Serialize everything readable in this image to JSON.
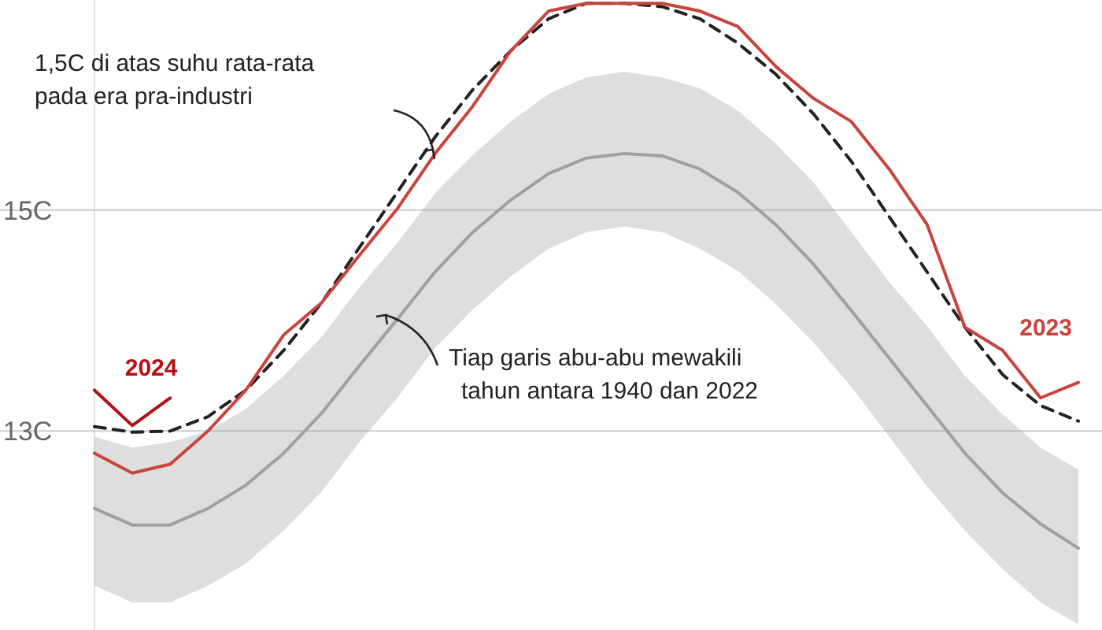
{
  "chart_data": {
    "type": "line",
    "categories": [
      null,
      null,
      null,
      null,
      null,
      null,
      null,
      null,
      null,
      null,
      null,
      null,
      null,
      null,
      null,
      null,
      null,
      null,
      null,
      null,
      null,
      null,
      null,
      null,
      null,
      null,
      null
    ],
    "ylim": [
      11.2,
      16.9
    ],
    "yticks": [
      {
        "value": 13,
        "label": "13C"
      },
      {
        "value": 15,
        "label": "15C"
      }
    ],
    "grid": "y",
    "tick_labels": "y",
    "series": [
      {
        "color": "#a0a0a0",
        "values": [
          12.3,
          12.15,
          12.15,
          12.3,
          12.51,
          12.8,
          13.16,
          13.59,
          14.01,
          14.44,
          14.8,
          15.09,
          15.33,
          15.47,
          15.51,
          15.49,
          15.37,
          15.16,
          14.87,
          14.51,
          14.09,
          13.66,
          13.23,
          12.8,
          12.44,
          12.16,
          11.94
        ],
        "lower": [
          11.6,
          11.45,
          11.45,
          11.6,
          11.8,
          12.1,
          12.45,
          12.9,
          13.3,
          13.75,
          14.1,
          14.4,
          14.65,
          14.8,
          14.85,
          14.8,
          14.65,
          14.45,
          14.15,
          13.8,
          13.4,
          12.95,
          12.5,
          12.1,
          11.75,
          11.45,
          11.25
        ],
        "upper": [
          12.95,
          12.85,
          12.9,
          13.0,
          13.2,
          13.5,
          13.85,
          14.3,
          14.7,
          15.15,
          15.5,
          15.8,
          16.05,
          16.2,
          16.25,
          16.2,
          16.1,
          15.9,
          15.6,
          15.25,
          14.8,
          14.35,
          13.95,
          13.5,
          13.15,
          12.85,
          12.65
        ]
      },
      {
        "color": "#222222",
        "line_style": "dashed",
        "values": [
          13.04,
          12.99,
          13.0,
          13.13,
          13.37,
          13.73,
          14.16,
          14.66,
          15.16,
          15.66,
          16.09,
          16.44,
          16.73,
          16.87,
          16.87,
          16.84,
          16.73,
          16.51,
          16.23,
          15.87,
          15.44,
          14.94,
          14.44,
          13.94,
          13.51,
          13.23,
          13.09
        ]
      },
      {
        "name": "2023",
        "color": "#c9443c",
        "values": [
          12.8,
          12.62,
          12.7,
          13.0,
          13.37,
          13.87,
          14.16,
          14.59,
          15.01,
          15.51,
          15.94,
          16.44,
          16.8,
          16.87,
          16.87,
          16.87,
          16.8,
          16.66,
          16.3,
          16.01,
          15.8,
          15.37,
          14.87,
          13.94,
          13.73,
          13.3,
          13.44
        ]
      },
      {
        "name": "2024",
        "color": "#b40f14",
        "values": [
          13.37,
          13.05,
          13.3,
          null,
          null,
          null,
          null,
          null,
          null,
          null,
          null,
          null,
          null,
          null,
          null,
          null,
          null,
          null,
          null,
          null,
          null,
          null,
          null,
          null,
          null,
          null,
          null
        ]
      }
    ],
    "annotations": [
      "1,5C di atas suhu rata-rata\npada era pra-industri",
      "Tiap garis abu-abu mewakili\ntahun antara 1940 dan 2022"
    ]
  }
}
